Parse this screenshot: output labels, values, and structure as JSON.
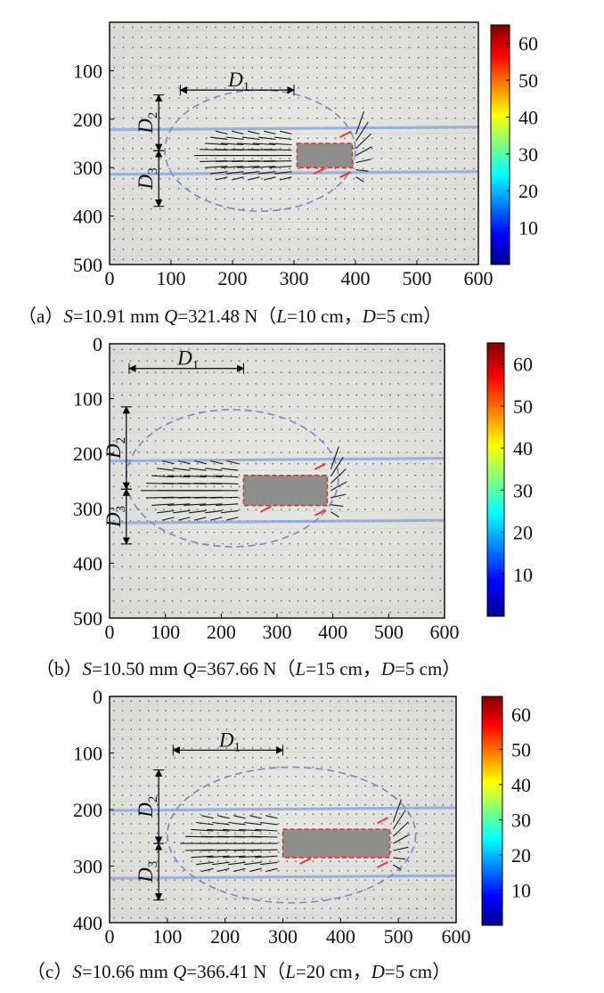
{
  "chart_data": [
    {
      "type": "vector-field",
      "caption": {
        "label": "（a）",
        "s": "S",
        "s_value": "=10.91 mm",
        "q": "Q",
        "q_value": "=321.48 N",
        "open": "（",
        "l": "L",
        "l_value": "=10 cm，",
        "d": "D",
        "d_value": "=5 cm）"
      },
      "xlim": [
        0,
        600
      ],
      "ylim": [
        0,
        500
      ],
      "y_reversed": true,
      "xticks": [
        "0",
        "100",
        "200",
        "300",
        "400",
        "500",
        "600"
      ],
      "yticks": [
        "100",
        "200",
        "300",
        "400",
        "500"
      ],
      "plate": {
        "x0": 305,
        "x1": 395,
        "y0": 250,
        "y1": 300
      },
      "bands": [
        220,
        312
      ],
      "envelope_center": [
        245,
        265
      ],
      "envelope_rx": 155,
      "envelope_ry": 125,
      "D1": {
        "x0": 115,
        "x1": 300,
        "y": 140
      },
      "D2": {
        "x": 80,
        "y0": 150,
        "y1": 265
      },
      "D3": {
        "x": 80,
        "y0": 265,
        "y1": 380
      },
      "colorbar": {
        "ticks": [
          "10",
          "20",
          "30",
          "40",
          "50",
          "60"
        ],
        "range": [
          0,
          65
        ]
      }
    },
    {
      "type": "vector-field",
      "caption": {
        "label": "（b）",
        "s": "S",
        "s_value": "=10.50 mm",
        "q": "Q",
        "q_value": "=367.66 N",
        "open": "（",
        "l": "L",
        "l_value": "=15 cm，",
        "d": "D",
        "d_value": "=5 cm）"
      },
      "xlim": [
        0,
        600
      ],
      "ylim": [
        0,
        500
      ],
      "y_reversed": true,
      "xticks": [
        "0",
        "100",
        "200",
        "300",
        "400",
        "500",
        "600"
      ],
      "yticks": [
        "0",
        "100",
        "200",
        "300",
        "400",
        "500"
      ],
      "plate": {
        "x0": 240,
        "x1": 390,
        "y0": 240,
        "y1": 295
      },
      "bands": [
        212,
        325
      ],
      "envelope_center": [
        220,
        245
      ],
      "envelope_rx": 190,
      "envelope_ry": 125,
      "D1": {
        "x0": 35,
        "x1": 240,
        "y": 45
      },
      "D2": {
        "x": 30,
        "y0": 115,
        "y1": 265
      },
      "D3": {
        "x": 30,
        "y0": 265,
        "y1": 365
      },
      "colorbar": {
        "ticks": [
          "10",
          "20",
          "30",
          "40",
          "50",
          "60"
        ],
        "range": [
          0,
          65
        ]
      }
    },
    {
      "type": "vector-field",
      "caption": {
        "label": "（c）",
        "s": "S",
        "s_value": "=10.66 mm",
        "q": "Q",
        "q_value": "=366.41 N",
        "open": "（",
        "l": "L",
        "l_value": "=20 cm，",
        "d": "D",
        "d_value": "=5 cm）"
      },
      "xlim": [
        0,
        600
      ],
      "ylim": [
        0,
        400
      ],
      "y_reversed": true,
      "xticks": [
        "0",
        "100",
        "200",
        "300",
        "400",
        "500",
        "600"
      ],
      "yticks": [
        "0",
        "100",
        "200",
        "300",
        "400"
      ],
      "plate": {
        "x0": 300,
        "x1": 485,
        "y0": 235,
        "y1": 285
      },
      "bands": [
        200,
        320
      ],
      "envelope_center": [
        315,
        245
      ],
      "envelope_rx": 215,
      "envelope_ry": 120,
      "D1": {
        "x0": 110,
        "x1": 300,
        "y": 95
      },
      "D2": {
        "x": 85,
        "y0": 130,
        "y1": 260
      },
      "D3": {
        "x": 85,
        "y0": 260,
        "y1": 360
      },
      "colorbar": {
        "ticks": [
          "10",
          "20",
          "30",
          "40",
          "50",
          "60"
        ],
        "range": [
          0,
          65
        ]
      }
    }
  ]
}
